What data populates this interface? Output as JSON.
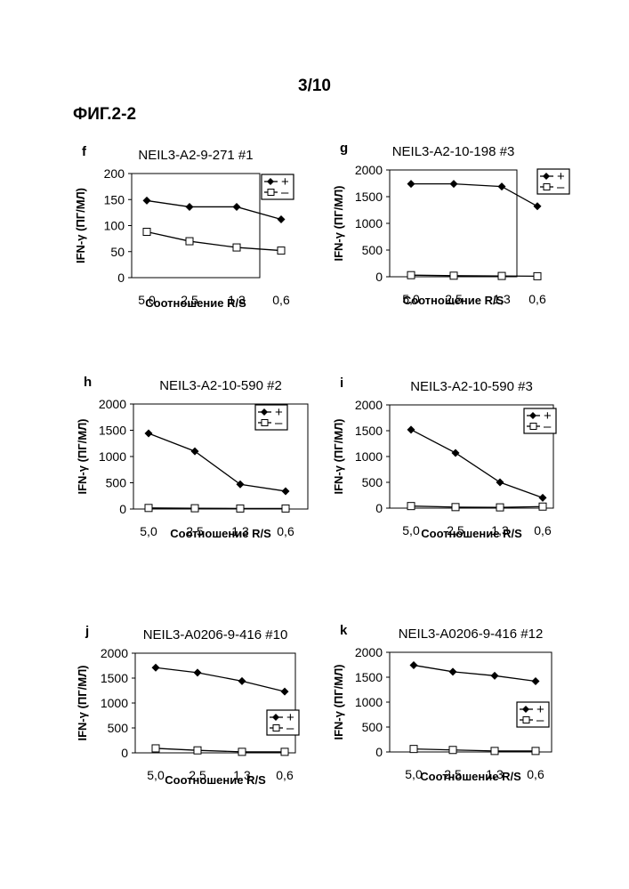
{
  "page": {
    "number": "3/10",
    "figure": "ФИГ.2-2"
  },
  "chart_data": [
    {
      "type": "line",
      "panel": "f",
      "title": "NEIL3-A2-9-271 #1",
      "xlabel": "Соотношение R/S",
      "ylabel": "IFN-γ (ПГ/МЛ)",
      "categories": [
        "5,0",
        "2,5",
        "1,3",
        "0,6"
      ],
      "yticks": [
        "0",
        "50",
        "100",
        "150",
        "200"
      ],
      "ylim": [
        0,
        200
      ],
      "legend_position": "top-right",
      "legend_labels": [
        "+",
        "–"
      ],
      "series": [
        {
          "name": "+",
          "marker": "filled-diamond",
          "values": [
            148,
            136,
            136,
            112
          ]
        },
        {
          "name": "–",
          "marker": "open-square",
          "values": [
            88,
            70,
            58,
            52
          ]
        }
      ]
    },
    {
      "type": "line",
      "panel": "g",
      "title": "NEIL3-A2-10-198 #3",
      "xlabel": "Соотношение R/S",
      "ylabel": "IFN-γ (ПГ/МЛ)",
      "categories": [
        "5,0",
        "2,5",
        "1,3",
        "0,6"
      ],
      "yticks": [
        "0",
        "500",
        "1000",
        "1500",
        "2000"
      ],
      "ylim": [
        0,
        2000
      ],
      "legend_position": "top-right",
      "legend_labels": [
        "+",
        "–"
      ],
      "series": [
        {
          "name": "+",
          "marker": "filled-diamond",
          "values": [
            1740,
            1740,
            1690,
            1320
          ]
        },
        {
          "name": "–",
          "marker": "open-square",
          "values": [
            30,
            20,
            15,
            10
          ]
        }
      ]
    },
    {
      "type": "line",
      "panel": "h",
      "title": "NEIL3-A2-10-590 #2",
      "xlabel": "Соотношение R/S",
      "ylabel": "IFN-γ (ПГ/МЛ)",
      "categories": [
        "5,0",
        "2,5",
        "1,3",
        "0,6"
      ],
      "yticks": [
        "0",
        "500",
        "1000",
        "1500",
        "2000"
      ],
      "ylim": [
        0,
        2000
      ],
      "legend_position": "top-right",
      "legend_labels": [
        "+",
        "–"
      ],
      "series": [
        {
          "name": "+",
          "marker": "filled-diamond",
          "values": [
            1440,
            1100,
            470,
            340
          ]
        },
        {
          "name": "–",
          "marker": "open-square",
          "values": [
            20,
            15,
            10,
            10
          ]
        }
      ]
    },
    {
      "type": "line",
      "panel": "i",
      "title": "NEIL3-A2-10-590 #3",
      "xlabel": "Соотношение R/S",
      "ylabel": "IFN-γ (ПГ/МЛ)",
      "categories": [
        "5,0",
        "2,5",
        "1,3",
        "0,6"
      ],
      "yticks": [
        "0",
        "500",
        "1000",
        "1500",
        "2000"
      ],
      "ylim": [
        0,
        2000
      ],
      "legend_position": "top-right",
      "legend_labels": [
        "+",
        "–"
      ],
      "series": [
        {
          "name": "+",
          "marker": "filled-diamond",
          "values": [
            1520,
            1070,
            500,
            200
          ]
        },
        {
          "name": "–",
          "marker": "open-square",
          "values": [
            40,
            20,
            15,
            30
          ]
        }
      ]
    },
    {
      "type": "line",
      "panel": "j",
      "title": "NEIL3-A0206-9-416 #10",
      "xlabel": "Соотношение R/S",
      "ylabel": "IFN-γ (ПГ/МЛ)",
      "categories": [
        "5,0",
        "2,5",
        "1,3",
        "0,6"
      ],
      "yticks": [
        "0",
        "500",
        "1000",
        "1500",
        "2000"
      ],
      "ylim": [
        0,
        2000
      ],
      "legend_position": "bottom-right",
      "legend_labels": [
        "+",
        "–"
      ],
      "series": [
        {
          "name": "+",
          "marker": "filled-diamond",
          "values": [
            1710,
            1610,
            1440,
            1230
          ]
        },
        {
          "name": "–",
          "marker": "open-square",
          "values": [
            90,
            50,
            20,
            20
          ]
        }
      ]
    },
    {
      "type": "line",
      "panel": "k",
      "title": "NEIL3-A0206-9-416 #12",
      "xlabel": "Соотношение R/S",
      "ylabel": "IFN-γ (ПГ/МЛ)",
      "categories": [
        "5,0",
        "2,5",
        "1,3",
        "0,6"
      ],
      "yticks": [
        "0",
        "500",
        "1000",
        "1500",
        "2000"
      ],
      "ylim": [
        0,
        2000
      ],
      "legend_position": "bottom-right",
      "legend_labels": [
        "+",
        "–"
      ],
      "series": [
        {
          "name": "+",
          "marker": "filled-diamond",
          "values": [
            1740,
            1610,
            1530,
            1420
          ]
        },
        {
          "name": "–",
          "marker": "open-square",
          "values": [
            60,
            40,
            20,
            20
          ]
        }
      ]
    }
  ]
}
